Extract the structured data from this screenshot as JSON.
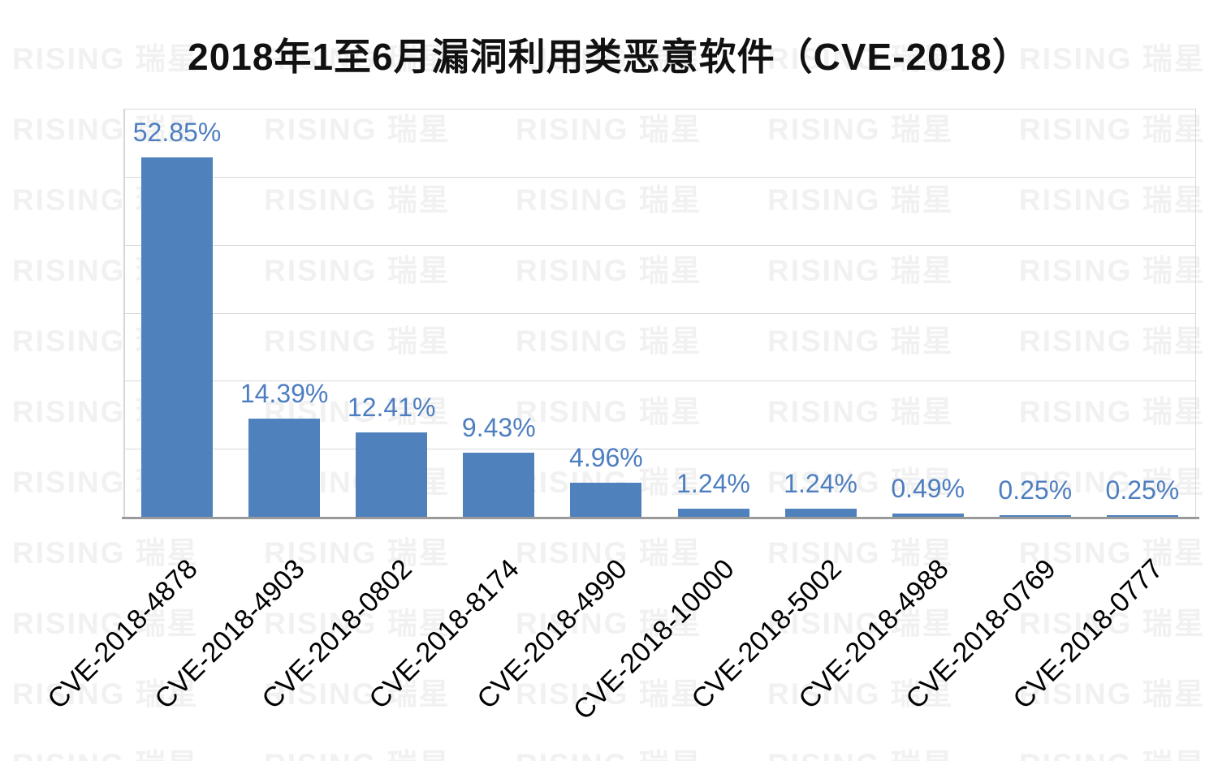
{
  "title": "2018年1至6月漏洞利用类恶意软件（CVE-2018）",
  "watermark": {
    "text": "RISING 瑞星"
  },
  "colors": {
    "bar": "#4f81bd",
    "value_label": "#4d7ebf",
    "gridline": "#d9d9d9",
    "axis_line": "#9a9a9a",
    "watermark": "#f1f1f1",
    "title": "#111111",
    "category_label": "#000000"
  },
  "chart_data": {
    "type": "bar",
    "title": "2018年1至6月漏洞利用类恶意软件（CVE-2018）",
    "categories": [
      "CVE-2018-4878",
      "CVE-2018-4903",
      "CVE-2018-0802",
      "CVE-2018-8174",
      "CVE-2018-4990",
      "CVE-2018-10000",
      "CVE-2018-5002",
      "CVE-2018-4988",
      "CVE-2018-0769",
      "CVE-2018-0777"
    ],
    "values": [
      52.85,
      14.39,
      12.41,
      9.43,
      4.96,
      1.24,
      1.24,
      0.49,
      0.25,
      0.25
    ],
    "value_labels": [
      "52.85%",
      "14.39%",
      "12.41%",
      "9.43%",
      "4.96%",
      "1.24%",
      "1.24%",
      "0.49%",
      "0.25%",
      "0.25%"
    ],
    "xlabel": "",
    "ylabel": "",
    "ylim": [
      0,
      60
    ],
    "gridline_step": 10,
    "y_tick_labels_shown": false,
    "grid": true,
    "legend": false,
    "x_tick_rotation": 45
  }
}
